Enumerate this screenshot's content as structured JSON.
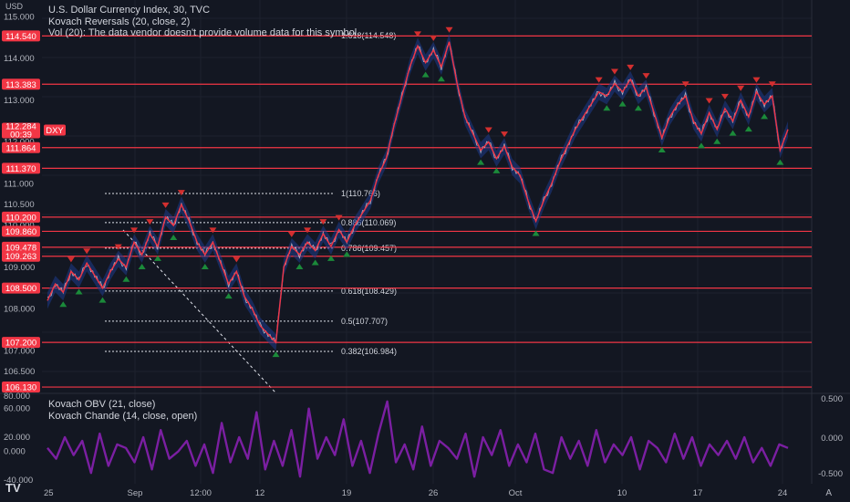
{
  "legend": {
    "currency_label": "USD",
    "title_line": "U.S. Dollar Currency Index, 30, TVC",
    "indicator_line": "Kovach Reversals (20, close, 2)",
    "volume_line": "Vol (20): The data vendor doesn't provide volume data for this symbol.",
    "obv_line": "Kovach OBV (21, close)",
    "chande_line": "Kovach Chande (14, close, open)"
  },
  "colors": {
    "background": "#131722",
    "grid": "#1e222d",
    "level_line": "#f23645",
    "price_line": "#d1d4dc",
    "band": "#1e3a8a",
    "ma": "#f23645",
    "up_marker": "#1b8a3a",
    "down_marker": "#d32f2f",
    "oscillator": "#7b1fa2"
  },
  "chart_data": [
    {
      "type": "line",
      "title": "U.S. Dollar Currency Index, 30, TVC",
      "ylabel": "USD",
      "ylim": [
        106.0,
        115.4
      ],
      "grid": true,
      "y_ticks": [
        "115.000",
        "114.000",
        "113.000",
        "112.000",
        "111.000",
        "110.500",
        "110.000",
        "109.500",
        "109.000",
        "108.000",
        "107.000",
        "106.500"
      ],
      "x_ticks": [
        "25",
        "Sep",
        "12:00",
        "12",
        "19",
        "26",
        "Oct",
        "10",
        "17",
        "24"
      ],
      "price_tags": [
        "114.540",
        "113.383",
        "111.864",
        "111.370",
        "110.200",
        "109.860",
        "109.478",
        "109.263",
        "108.500",
        "107.200",
        "106.130"
      ],
      "last_price": {
        "symbol": "DXY",
        "value": "112.284",
        "countdown": "00:39"
      },
      "series": [
        {
          "values": [
            108.2,
            108.6,
            108.4,
            108.9,
            108.7,
            109.1,
            108.8,
            108.5,
            108.9,
            109.2,
            109.0,
            109.6,
            109.3,
            109.8,
            109.5,
            110.2,
            110.0,
            110.5,
            110.1,
            109.6,
            109.3,
            109.6,
            109.1,
            108.6,
            108.9,
            108.3,
            108.0,
            107.6,
            107.4,
            107.2,
            109.0,
            109.5,
            109.3,
            109.6,
            109.4,
            109.8,
            109.5,
            109.9,
            109.6,
            110.0,
            110.3,
            110.6,
            111.2,
            111.6,
            112.4,
            113.1,
            113.8,
            114.3,
            113.9,
            114.2,
            113.8,
            114.4,
            113.4,
            112.6,
            112.2,
            111.8,
            112.0,
            111.6,
            111.9,
            111.4,
            111.2,
            110.6,
            110.1,
            110.6,
            111.0,
            111.5,
            111.9,
            112.3,
            112.6,
            112.9,
            113.2,
            113.1,
            113.4,
            113.2,
            113.5,
            113.1,
            113.3,
            112.7,
            112.1,
            112.6,
            112.9,
            113.1,
            112.5,
            112.2,
            112.7,
            112.3,
            112.8,
            112.5,
            113.0,
            112.6,
            113.2,
            112.9,
            113.1,
            111.8,
            112.3
          ]
        }
      ],
      "fib_levels": [
        {
          "label": "1.618(114.548)",
          "value": 114.548
        },
        {
          "label": "1(110.766)",
          "value": 110.766
        },
        {
          "label": "0.886(110.069)",
          "value": 110.069
        },
        {
          "label": "0.786(109.457)",
          "value": 109.457
        },
        {
          "label": "0.618(108.429)",
          "value": 108.429
        },
        {
          "label": "0.5(107.707)",
          "value": 107.707
        },
        {
          "label": "0.382(106.984)",
          "value": 106.984
        }
      ]
    },
    {
      "type": "line",
      "title": "Kovach Chande (14, close, open)",
      "ylim": [
        -45,
        80
      ],
      "left_ticks": [
        "60.000",
        "20.000",
        "0.000",
        "-40.000"
      ],
      "right_ticks": [
        "0.500",
        "0.000",
        "-0.500"
      ],
      "left_top_partial": "80.000",
      "series": [
        {
          "values": [
            5,
            -10,
            20,
            -5,
            15,
            -30,
            25,
            -20,
            10,
            5,
            -15,
            20,
            -25,
            30,
            -10,
            0,
            15,
            -20,
            10,
            -30,
            40,
            -15,
            20,
            -10,
            55,
            -25,
            15,
            -20,
            30,
            -35,
            60,
            -10,
            20,
            -5,
            45,
            -20,
            15,
            -30,
            25,
            70,
            -15,
            10,
            -25,
            35,
            -20,
            15,
            5,
            -10,
            25,
            -35,
            20,
            -5,
            30,
            -20,
            10,
            -15,
            25,
            -25,
            -30,
            20,
            -10,
            15,
            -20,
            30,
            -15,
            10,
            -5,
            20,
            -25,
            15,
            5,
            -15,
            25,
            -10,
            20,
            -20,
            10,
            -5,
            15,
            -10,
            20,
            -15,
            5,
            -20,
            10,
            5
          ]
        }
      ]
    }
  ]
}
